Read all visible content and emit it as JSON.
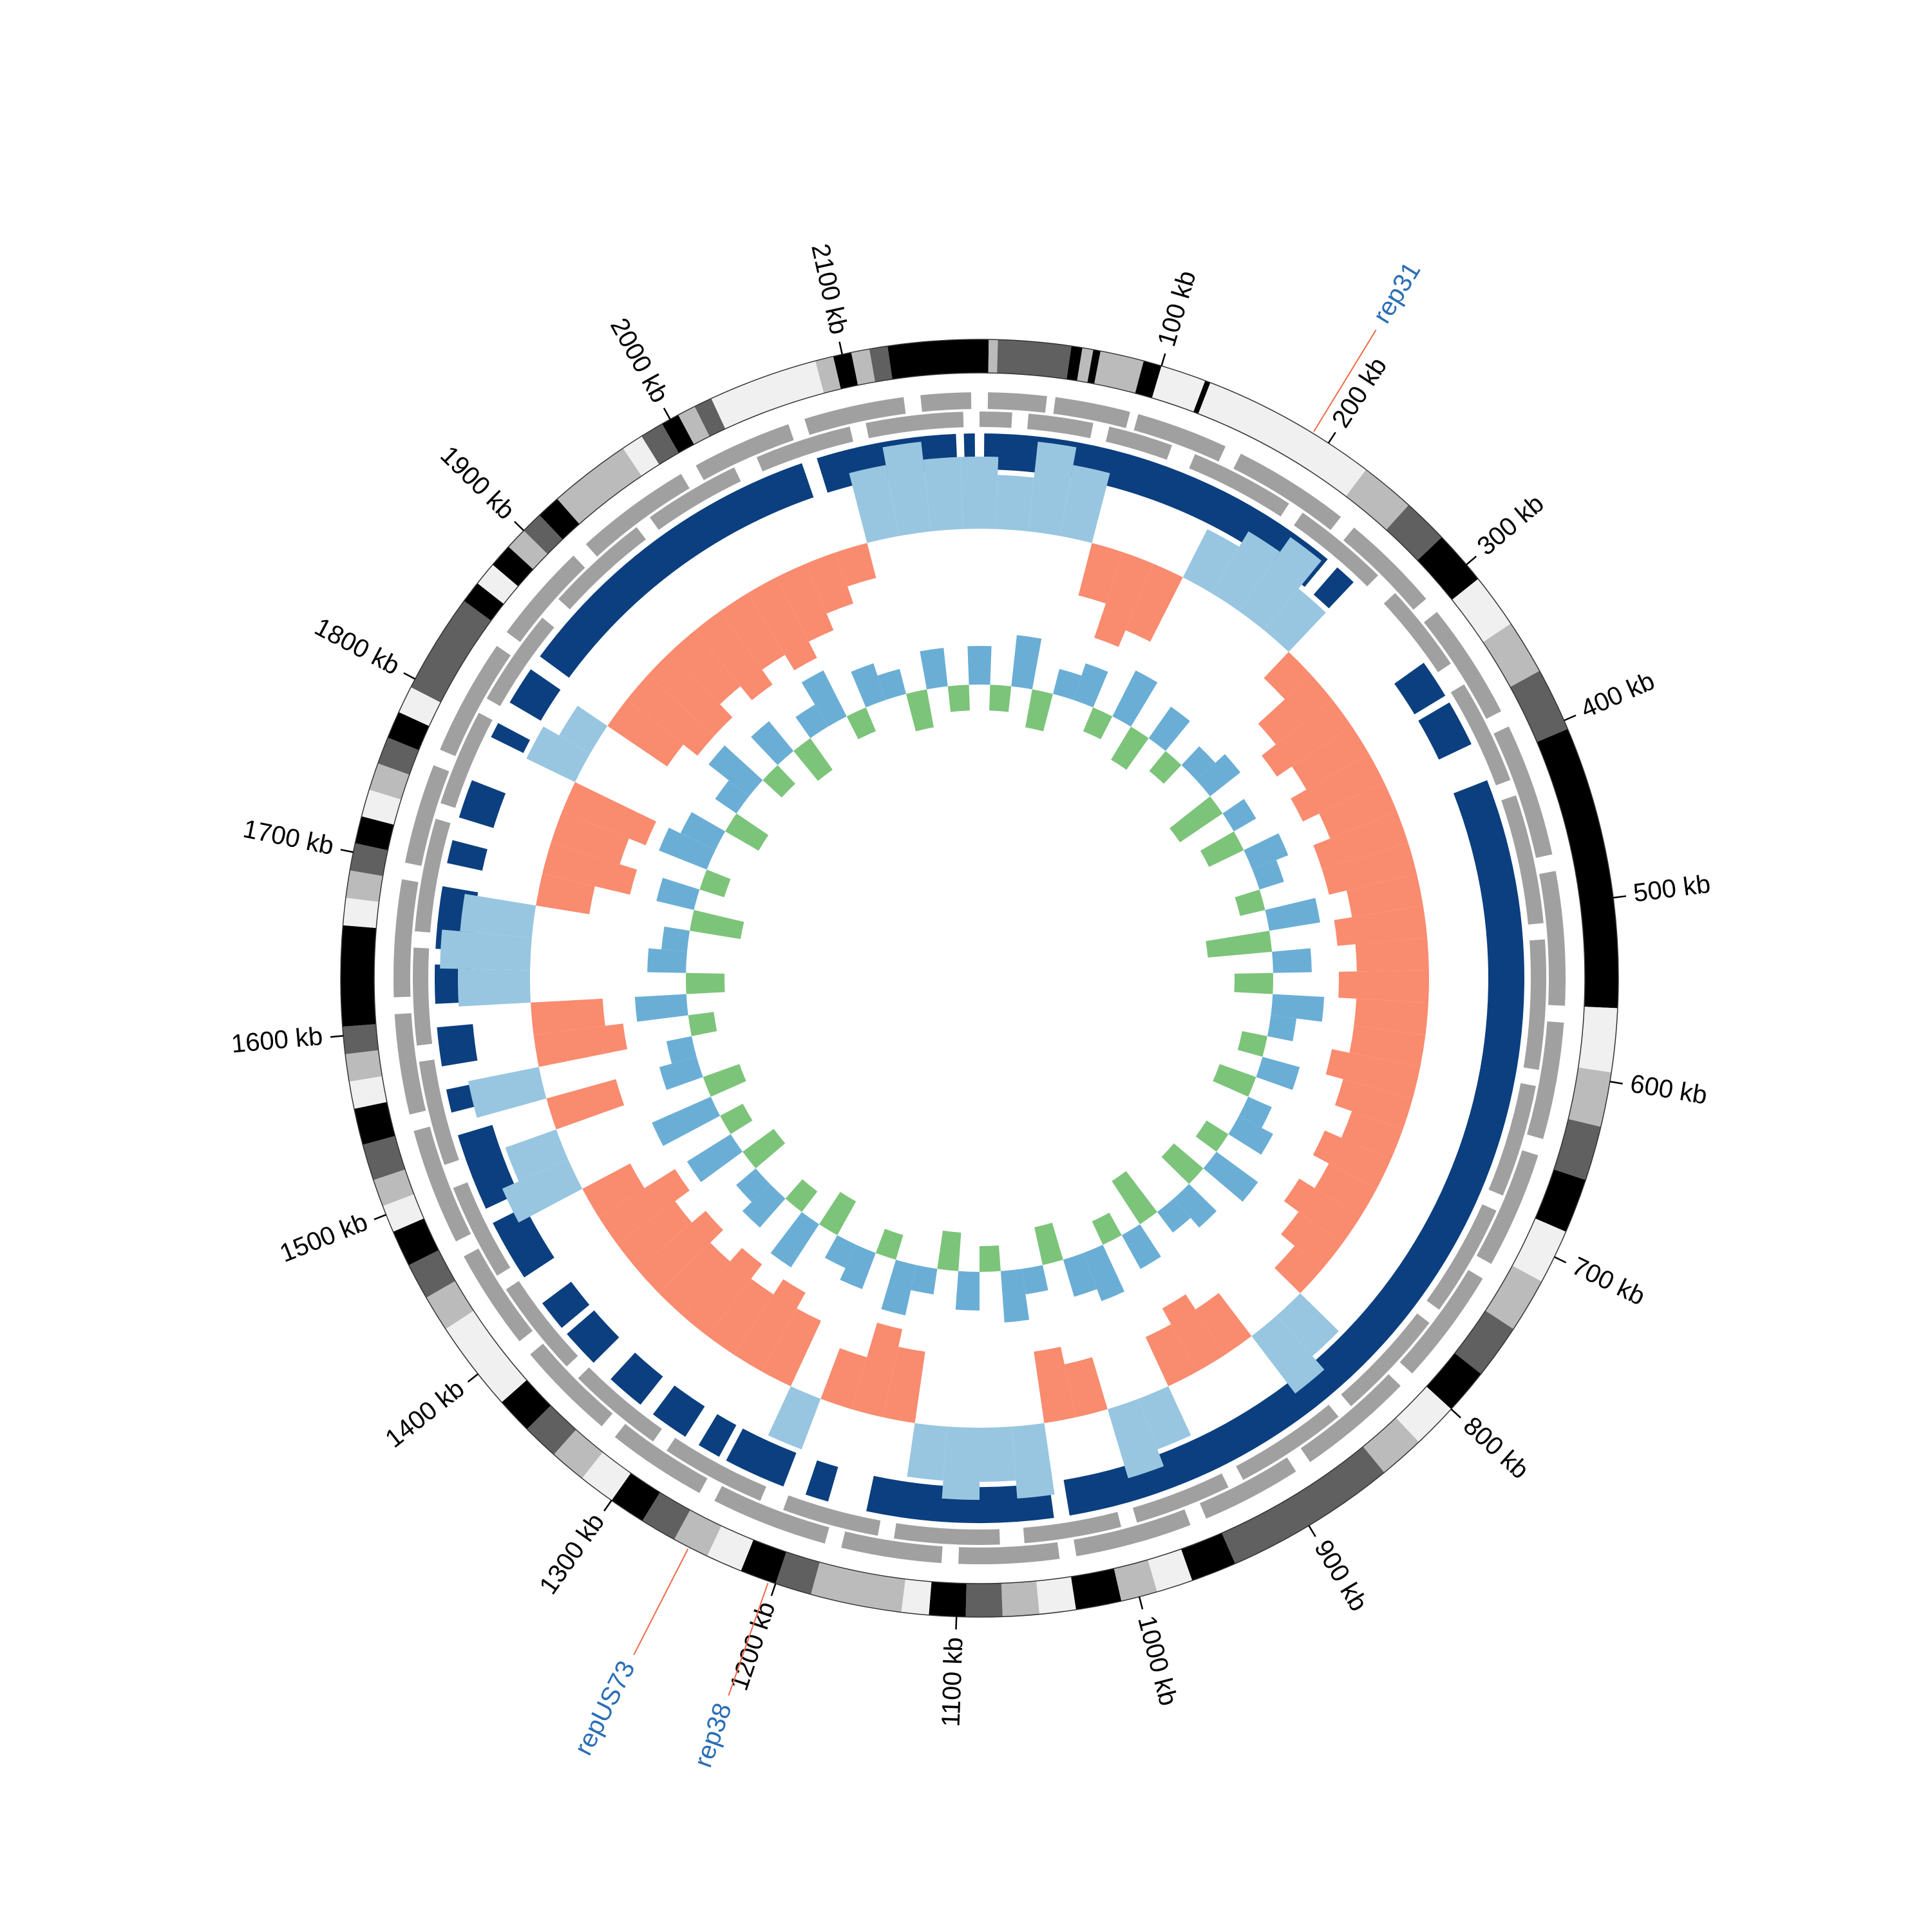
{
  "chart_data": {
    "type": "circular-genome",
    "xlim": [
      0,
      2175
    ],
    "xticks": [
      {
        "value": 100,
        "label": "100 kb"
      },
      {
        "value": 200,
        "label": "200 kb"
      },
      {
        "value": 300,
        "label": "300 kb"
      },
      {
        "value": 400,
        "label": "400 kb"
      },
      {
        "value": 500,
        "label": "500 kb"
      },
      {
        "value": 600,
        "label": "600 kb"
      },
      {
        "value": 700,
        "label": "700 kb"
      },
      {
        "value": 800,
        "label": "800 kb"
      },
      {
        "value": 900,
        "label": "900 kb"
      },
      {
        "value": 1000,
        "label": "1000 kb"
      },
      {
        "value": 1100,
        "label": "1100 kb"
      },
      {
        "value": 1200,
        "label": "1200 kb"
      },
      {
        "value": 1300,
        "label": "1300 kb"
      },
      {
        "value": 1400,
        "label": "1400 kb"
      },
      {
        "value": 1500,
        "label": "1500 kb"
      },
      {
        "value": 1600,
        "label": "1600 kb"
      },
      {
        "value": 1700,
        "label": "1700 kb"
      },
      {
        "value": 1800,
        "label": "1800 kb"
      },
      {
        "value": 1900,
        "label": "1900 kb"
      },
      {
        "value": 2000,
        "label": "2000 kb"
      },
      {
        "value": 2100,
        "label": "2100 kb"
      }
    ],
    "bands": [
      [
        0,
        5,
        "#000000"
      ],
      [
        5,
        10,
        "#bbbbbb"
      ],
      [
        10,
        50,
        "#606060"
      ],
      [
        50,
        56,
        "#000000"
      ],
      [
        56,
        62,
        "#bbbbbb"
      ],
      [
        62,
        66,
        "#000000"
      ],
      [
        66,
        90,
        "#bbbbbb"
      ],
      [
        90,
        100,
        "#000000"
      ],
      [
        100,
        125,
        "#f0f0f0"
      ],
      [
        125,
        128,
        "#000000"
      ],
      [
        128,
        225,
        "#f0f0f0"
      ],
      [
        225,
        255,
        "#bbbbbb"
      ],
      [
        255,
        280,
        "#606060"
      ],
      [
        280,
        310,
        "#000000"
      ],
      [
        310,
        340,
        "#f0f0f0"
      ],
      [
        340,
        370,
        "#bbbbbb"
      ],
      [
        370,
        405,
        "#606060"
      ],
      [
        405,
        560,
        "#000000"
      ],
      [
        560,
        595,
        "#f0f0f0"
      ],
      [
        595,
        625,
        "#bbbbbb"
      ],
      [
        625,
        655,
        "#606060"
      ],
      [
        655,
        685,
        "#000000"
      ],
      [
        685,
        715,
        "#f0f0f0"
      ],
      [
        715,
        745,
        "#bbbbbb"
      ],
      [
        745,
        775,
        "#606060"
      ],
      [
        775,
        800,
        "#000000"
      ],
      [
        800,
        825,
        "#f0f0f0"
      ],
      [
        825,
        850,
        "#bbbbbb"
      ],
      [
        850,
        945,
        "#606060"
      ],
      [
        945,
        970,
        "#000000"
      ],
      [
        970,
        990,
        "#f0f0f0"
      ],
      [
        990,
        1010,
        "#bbbbbb"
      ],
      [
        1010,
        1035,
        "#000000"
      ],
      [
        1035,
        1055,
        "#f0f0f0"
      ],
      [
        1055,
        1075,
        "#bbbbbb"
      ],
      [
        1075,
        1095,
        "#606060"
      ],
      [
        1095,
        1115,
        "#000000"
      ],
      [
        1115,
        1130,
        "#f0f0f0"
      ],
      [
        1130,
        1180,
        "#bbbbbb"
      ],
      [
        1180,
        1200,
        "#606060"
      ],
      [
        1200,
        1220,
        "#000000"
      ],
      [
        1220,
        1240,
        "#f0f0f0"
      ],
      [
        1240,
        1260,
        "#bbbbbb"
      ],
      [
        1260,
        1280,
        "#606060"
      ],
      [
        1280,
        1300,
        "#000000"
      ],
      [
        1300,
        1320,
        "#f0f0f0"
      ],
      [
        1320,
        1340,
        "#bbbbbb"
      ],
      [
        1340,
        1360,
        "#606060"
      ],
      [
        1360,
        1380,
        "#000000"
      ],
      [
        1380,
        1430,
        "#f0f0f0"
      ],
      [
        1430,
        1450,
        "#bbbbbb"
      ],
      [
        1450,
        1470,
        "#606060"
      ],
      [
        1470,
        1490,
        "#000000"
      ],
      [
        1490,
        1505,
        "#f0f0f0"
      ],
      [
        1505,
        1520,
        "#bbbbbb"
      ],
      [
        1520,
        1540,
        "#606060"
      ],
      [
        1540,
        1560,
        "#000000"
      ],
      [
        1560,
        1575,
        "#f0f0f0"
      ],
      [
        1575,
        1590,
        "#bbbbbb"
      ],
      [
        1590,
        1605,
        "#606060"
      ],
      [
        1605,
        1660,
        "#000000"
      ],
      [
        1660,
        1675,
        "#f0f0f0"
      ],
      [
        1675,
        1690,
        "#bbbbbb"
      ],
      [
        1690,
        1705,
        "#606060"
      ],
      [
        1705,
        1720,
        "#000000"
      ],
      [
        1720,
        1735,
        "#f0f0f0"
      ],
      [
        1735,
        1750,
        "#bbbbbb"
      ],
      [
        1750,
        1765,
        "#606060"
      ],
      [
        1765,
        1780,
        "#000000"
      ],
      [
        1780,
        1795,
        "#f0f0f0"
      ],
      [
        1795,
        1850,
        "#606060"
      ],
      [
        1850,
        1862,
        "#000000"
      ],
      [
        1862,
        1875,
        "#f0f0f0"
      ],
      [
        1875,
        1888,
        "#000000"
      ],
      [
        1888,
        1900,
        "#bbbbbb"
      ],
      [
        1900,
        1912,
        "#606060"
      ],
      [
        1912,
        1925,
        "#000000"
      ],
      [
        1925,
        1970,
        "#bbbbbb"
      ],
      [
        1970,
        1982,
        "#f0f0f0"
      ],
      [
        1982,
        1995,
        "#606060"
      ],
      [
        1995,
        2005,
        "#000000"
      ],
      [
        2005,
        2015,
        "#bbbbbb"
      ],
      [
        2015,
        2025,
        "#606060"
      ],
      [
        2025,
        2085,
        "#f0f0f0"
      ],
      [
        2085,
        2095,
        "#bbbbbb"
      ],
      [
        2095,
        2105,
        "#000000"
      ],
      [
        2105,
        2115,
        "#bbbbbb"
      ],
      [
        2115,
        2125,
        "#606060"
      ],
      [
        2125,
        2175,
        "#000000"
      ]
    ],
    "feature_tracks": [
      {
        "color": "#a0a0a0",
        "intervals": [
          [
            5,
            40
          ],
          [
            45,
            90
          ],
          [
            95,
            150
          ],
          [
            160,
            230
          ],
          [
            240,
            300
          ],
          [
            310,
            380
          ],
          [
            390,
            470
          ],
          [
            480,
            560
          ],
          [
            570,
            640
          ],
          [
            650,
            720
          ],
          [
            730,
            800
          ],
          [
            810,
            880
          ],
          [
            890,
            950
          ],
          [
            960,
            1030
          ],
          [
            1040,
            1100
          ],
          [
            1110,
            1170
          ],
          [
            1180,
            1250
          ],
          [
            1260,
            1320
          ],
          [
            1330,
            1390
          ],
          [
            1400,
            1460
          ],
          [
            1470,
            1540
          ],
          [
            1550,
            1610
          ],
          [
            1620,
            1690
          ],
          [
            1700,
            1760
          ],
          [
            1770,
            1840
          ],
          [
            1850,
            1910
          ],
          [
            1920,
            1990
          ],
          [
            2000,
            2060
          ],
          [
            2070,
            2130
          ],
          [
            2140,
            2170
          ]
        ]
      },
      {
        "color": "#a0a0a0",
        "intervals": [
          [
            0,
            20
          ],
          [
            30,
            70
          ],
          [
            80,
            120
          ],
          [
            135,
            200
          ],
          [
            210,
            270
          ],
          [
            285,
            340
          ],
          [
            355,
            420
          ],
          [
            430,
            510
          ],
          [
            520,
            600
          ],
          [
            610,
            680
          ],
          [
            690,
            760
          ],
          [
            770,
            840
          ],
          [
            850,
            920
          ],
          [
            930,
            990
          ],
          [
            1000,
            1060
          ],
          [
            1075,
            1140
          ],
          [
            1150,
            1210
          ],
          [
            1225,
            1290
          ],
          [
            1300,
            1360
          ],
          [
            1370,
            1430
          ],
          [
            1440,
            1500
          ],
          [
            1515,
            1580
          ],
          [
            1590,
            1650
          ],
          [
            1660,
            1730
          ],
          [
            1740,
            1800
          ],
          [
            1810,
            1870
          ],
          [
            1885,
            1950
          ],
          [
            1960,
            2020
          ],
          [
            2035,
            2095
          ],
          [
            2105,
            2165
          ]
        ]
      }
    ],
    "hit_track": {
      "color": "#0b3f7f",
      "intervals": [
        [
          3,
          240
        ],
        [
          248,
          262
        ],
        [
          330,
          355
        ],
        [
          360,
          390
        ],
        [
          415,
          1030
        ],
        [
          1040,
          1160
        ],
        [
          1185,
          1200
        ],
        [
          1215,
          1255
        ],
        [
          1260,
          1275
        ],
        [
          1285,
          1310
        ],
        [
          1320,
          1345
        ],
        [
          1360,
          1385
        ],
        [
          1390,
          1410
        ],
        [
          1430,
          1470
        ],
        [
          1480,
          1530
        ],
        [
          1545,
          1560
        ],
        [
          1575,
          1600
        ],
        [
          1615,
          1640
        ],
        [
          1650,
          1690
        ],
        [
          1705,
          1720
        ],
        [
          1735,
          1760
        ],
        [
          1790,
          1800
        ],
        [
          1815,
          1840
        ],
        [
          1850,
          2060
        ],
        [
          2070,
          2160
        ],
        [
          2165,
          2172
        ]
      ]
    },
    "skew": {
      "x": [
        0,
        25,
        50,
        75,
        100,
        125,
        150,
        175,
        200,
        225,
        250,
        275,
        300,
        325,
        350,
        375,
        400,
        425,
        450,
        475,
        500,
        525,
        550,
        575,
        600,
        625,
        650,
        675,
        700,
        725,
        750,
        775,
        800,
        825,
        850,
        875,
        900,
        925,
        950,
        975,
        1000,
        1025,
        1050,
        1075,
        1100,
        1125,
        1150,
        1175,
        1200,
        1225,
        1250,
        1275,
        1300,
        1325,
        1350,
        1375,
        1400,
        1425,
        1450,
        1475,
        1500,
        1525,
        1550,
        1575,
        1600,
        1625,
        1650,
        1675,
        1700,
        1725,
        1750,
        1775,
        1800,
        1825,
        1850,
        1875,
        1900,
        1925,
        1950,
        1975,
        2000,
        2025,
        2050,
        2075,
        2100,
        2125,
        2150
      ],
      "values": [
        0.04,
        0.03,
        0.05,
        0.04,
        -0.03,
        -0.05,
        -0.04,
        0.03,
        0.04,
        0.05,
        0.03,
        -0.02,
        -0.04,
        -0.05,
        -0.04,
        -0.05,
        -0.04,
        -0.05,
        -0.05,
        -0.04,
        -0.05,
        -0.04,
        -0.05,
        -0.04,
        -0.04,
        -0.05,
        -0.04,
        -0.03,
        -0.04,
        -0.03,
        -0.04,
        -0.03,
        -0.02,
        0.03,
        0.04,
        -0.03,
        -0.04,
        -0.03,
        0.03,
        0.04,
        -0.03,
        -0.04,
        0.04,
        0.03,
        0.04,
        0.03,
        -0.04,
        -0.05,
        -0.03,
        0.03,
        -0.04,
        -0.05,
        -0.04,
        -0.05,
        -0.04,
        -0.05,
        -0.04,
        -0.05,
        -0.03,
        0.04,
        0.03,
        -0.04,
        0.04,
        -0.05,
        -0.04,
        0.04,
        0.05,
        0.04,
        -0.03,
        -0.05,
        -0.04,
        -0.05,
        0.03,
        0.02,
        -0.04,
        -0.05,
        -0.05,
        -0.04,
        -0.05,
        -0.04,
        -0.05,
        -0.04,
        -0.03,
        -0.02,
        0.04,
        0.05,
        0.04
      ],
      "positive_color": "#98c6e1",
      "negative_color": "#f98b6f",
      "ylim": [
        -0.1,
        0.1
      ]
    },
    "gc": {
      "x": [
        0,
        25,
        50,
        75,
        100,
        125,
        150,
        175,
        200,
        225,
        250,
        275,
        300,
        325,
        350,
        375,
        400,
        425,
        450,
        475,
        500,
        525,
        550,
        575,
        600,
        625,
        650,
        675,
        700,
        725,
        750,
        775,
        800,
        825,
        850,
        875,
        900,
        925,
        950,
        975,
        1000,
        1025,
        1050,
        1075,
        1100,
        1125,
        1150,
        1175,
        1200,
        1225,
        1250,
        1275,
        1300,
        1325,
        1350,
        1375,
        1400,
        1425,
        1450,
        1475,
        1500,
        1525,
        1550,
        1575,
        1600,
        1625,
        1650,
        1675,
        1700,
        1725,
        1750,
        1775,
        1800,
        1825,
        1850,
        1875,
        1900,
        1925,
        1950,
        1975,
        2000,
        2025,
        2050,
        2075,
        2100,
        2125,
        2150
      ],
      "values": [
        0.03,
        -0.02,
        0.04,
        -0.03,
        0.02,
        0.03,
        -0.02,
        0.04,
        -0.03,
        0.03,
        -0.02,
        0.02,
        0.03,
        -0.04,
        0.02,
        -0.03,
        0.03,
        0.02,
        -0.02,
        0.04,
        -0.05,
        0.03,
        -0.03,
        0.04,
        0.02,
        -0.02,
        0.03,
        -0.03,
        0.02,
        0.03,
        -0.02,
        0.04,
        -0.03,
        0.03,
        0.02,
        -0.04,
        0.03,
        -0.02,
        0.04,
        0.03,
        -0.03,
        0.02,
        0.04,
        -0.02,
        0.03,
        -0.03,
        0.02,
        0.04,
        -0.02,
        0.03,
        0.02,
        -0.03,
        0.04,
        -0.02,
        0.03,
        0.02,
        -0.03,
        0.04,
        -0.02,
        0.05,
        -0.03,
        0.03,
        0.02,
        -0.02,
        0.04,
        -0.03,
        0.03,
        0.02,
        -0.04,
        0.03,
        -0.02,
        0.04,
        0.03,
        -0.03,
        0.02,
        0.04,
        -0.02,
        0.03,
        -0.03,
        0.02,
        0.04,
        -0.02,
        0.03,
        0.02,
        -0.03,
        0.03,
        -0.02
      ],
      "positive_color": "#6aaed6",
      "negative_color": "#7cc47a",
      "ylim": [
        -0.1,
        0.1
      ]
    },
    "annotation_color": "#2a6eb5",
    "annotation_line_color": "#f06a4a",
    "annotations": [
      {
        "label": "rep31",
        "position": 190
      },
      {
        "label": "rep38",
        "position": 1204
      },
      {
        "label": "repUS73",
        "position": 1251
      }
    ]
  }
}
